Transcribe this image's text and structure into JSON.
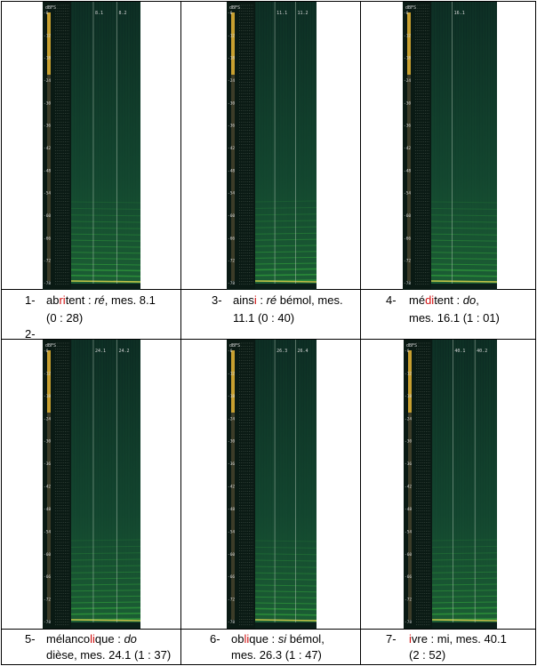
{
  "panels": [
    {
      "number": "1-",
      "pre": "ab",
      "hl": "ri",
      "post": "tent : ",
      "note": "ré",
      "rest1": ", mes. 8.1",
      "line2": "(0 : 28)",
      "markers": [
        "8.1",
        "8.2"
      ],
      "extra_number": "2-"
    },
    {
      "number": "3-",
      "pre": "ains",
      "hl": "i",
      "post": " : ",
      "note": "ré",
      "rest1": " bémol, mes.",
      "line2": "11.1 (0 : 40)",
      "markers": [
        "11.1",
        "11.2"
      ]
    },
    {
      "number": "4-",
      "pre": "mé",
      "hl": "di",
      "post": "tent : ",
      "note": "do",
      "rest1": ",",
      "line2": "mes. 16.1 (1 : 01)",
      "markers": [
        "16.1"
      ]
    },
    {
      "number": "5-",
      "pre": "mélanco",
      "hl": "li",
      "post": "que : ",
      "note": "do",
      "rest1": "",
      "line2": "dièse, mes. 24.1 (1 : 37)",
      "markers": [
        "24.1",
        "24.2"
      ]
    },
    {
      "number": "6-",
      "pre": "ob",
      "hl": "li",
      "post": "que : ",
      "note": "si",
      "rest1": " bémol,",
      "line2": "mes. 26.3 (1 : 47)",
      "markers": [
        "26.3",
        "26.4"
      ]
    },
    {
      "number": "7-",
      "pre": "",
      "hl": "i",
      "post": "vre : mi, mes. 40.1",
      "note": "",
      "rest1": "",
      "line2": "(2 : 52)",
      "markers": [
        "40.1",
        "40.2"
      ]
    }
  ],
  "spectrogram": {
    "unit": "dBFS",
    "db_labels": [
      "-6",
      "-12",
      "-18",
      "-24",
      "-30",
      "-36",
      "-42",
      "-48",
      "-54",
      "-60",
      "-66",
      "-72",
      "-78"
    ],
    "colors": {
      "dark": "#0c2a22",
      "mid": "#12442e",
      "bright": "#2f9a3a",
      "accent": "#d4c84a",
      "level": "#c8a030"
    }
  }
}
